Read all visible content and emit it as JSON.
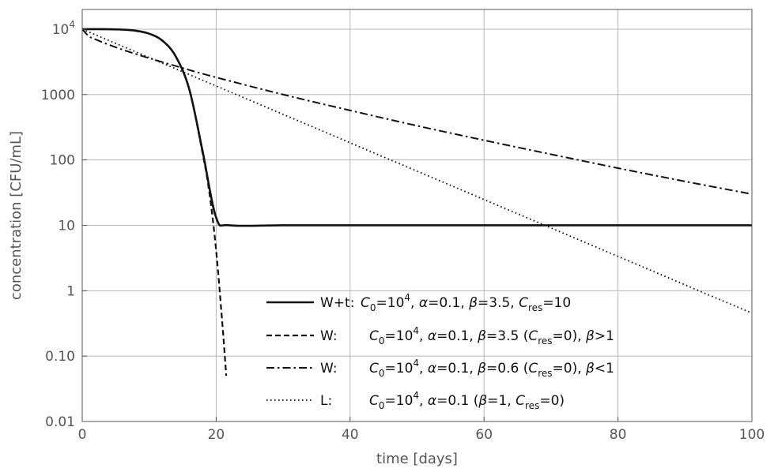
{
  "chart_data": {
    "type": "line",
    "xlabel": "time [days]",
    "ylabel": "concentration [CFU/mL]",
    "x_scale": "linear",
    "y_scale": "log",
    "xlim": [
      0,
      100
    ],
    "ylim": [
      0.01,
      20000
    ],
    "grid": true,
    "legend_placement": "bottom-center",
    "x_ticks": [
      "0",
      "20",
      "40",
      "60",
      "80",
      "100"
    ],
    "y_ticks": [
      {
        "value": 0.01,
        "label": "0.01"
      },
      {
        "value": 0.1,
        "label": "0.10"
      },
      {
        "value": 1,
        "label": "1"
      },
      {
        "value": 10,
        "label": "10"
      },
      {
        "value": 100,
        "label": "100"
      },
      {
        "value": 1000,
        "label": "1000"
      },
      {
        "value": 10000,
        "label": "10",
        "exp": "4"
      }
    ],
    "series": [
      {
        "style": "solid",
        "legend": {
          "tag": "W+t:",
          "parts": [
            {
              "t": "C",
              "i": true
            },
            {
              "t": "0",
              "sub": true
            },
            {
              "t": "=10"
            },
            {
              "t": "4",
              "sup": true
            },
            {
              "t": ", "
            },
            {
              "t": "α",
              "i": true
            },
            {
              "t": "=0.1, "
            },
            {
              "t": "β",
              "i": true
            },
            {
              "t": "=3.5, "
            },
            {
              "t": "C",
              "i": true
            },
            {
              "t": "res",
              "sub": true
            },
            {
              "t": "=10"
            }
          ]
        },
        "x": [
          0,
          2,
          4,
          6,
          8,
          10,
          12,
          14,
          16,
          18,
          20,
          22,
          30,
          40,
          50,
          60,
          70,
          80,
          90,
          100
        ],
        "y": [
          10000,
          9998,
          9970,
          9840,
          9450,
          8530,
          6650,
          3780,
          1190,
          132,
          13.1,
          10.01,
          10,
          10,
          10,
          10,
          10,
          10,
          10,
          10
        ]
      },
      {
        "style": "dashed",
        "legend": {
          "tag": "W:",
          "parts": [
            {
              "t": "C",
              "i": true
            },
            {
              "t": "0",
              "sub": true
            },
            {
              "t": "=10"
            },
            {
              "t": "4",
              "sup": true
            },
            {
              "t": ", "
            },
            {
              "t": "α",
              "i": true
            },
            {
              "t": "=0.1, "
            },
            {
              "t": "β",
              "i": true
            },
            {
              "t": "=3.5 ("
            },
            {
              "t": "C",
              "i": true
            },
            {
              "t": "res",
              "sub": true
            },
            {
              "t": "=0), "
            },
            {
              "t": "β",
              "i": true
            },
            {
              "t": ">1"
            }
          ]
        },
        "x": [
          0,
          2,
          4,
          6,
          8,
          10,
          12,
          14,
          16,
          18,
          19,
          20,
          21,
          21.5
        ],
        "y": [
          10000,
          9998,
          9960,
          9830,
          9440,
          8520,
          6640,
          3770,
          1180,
          122,
          30.8,
          4.1,
          0.25,
          0.05
        ]
      },
      {
        "style": "dashdot",
        "legend": {
          "tag": "W:",
          "parts": [
            {
              "t": "C",
              "i": true
            },
            {
              "t": "0",
              "sub": true
            },
            {
              "t": "=10"
            },
            {
              "t": "4",
              "sup": true
            },
            {
              "t": ", "
            },
            {
              "t": "α",
              "i": true
            },
            {
              "t": "=0.1, "
            },
            {
              "t": "β",
              "i": true
            },
            {
              "t": "=0.6 ("
            },
            {
              "t": "C",
              "i": true
            },
            {
              "t": "res",
              "sub": true
            },
            {
              "t": "=0), "
            },
            {
              "t": "β",
              "i": true
            },
            {
              "t": "<1"
            }
          ]
        },
        "x": [
          0,
          1,
          2,
          4,
          6,
          8,
          10,
          15,
          20,
          30,
          40,
          50,
          60,
          70,
          80,
          90,
          100
        ],
        "y": [
          10000,
          7770,
          6960,
          5760,
          4870,
          4170,
          3600,
          2540,
          1830,
          1000,
          572,
          333,
          200,
          122,
          75,
          47,
          30
        ]
      },
      {
        "style": "dotted",
        "legend": {
          "tag": "L:",
          "parts": [
            {
              "t": "C",
              "i": true
            },
            {
              "t": "0",
              "sub": true
            },
            {
              "t": "=10"
            },
            {
              "t": "4",
              "sup": true
            },
            {
              "t": ", "
            },
            {
              "t": "α",
              "i": true
            },
            {
              "t": "=0.1  ("
            },
            {
              "t": "β",
              "i": true
            },
            {
              "t": "=1,   "
            },
            {
              "t": "C",
              "i": true
            },
            {
              "t": "res",
              "sub": true
            },
            {
              "t": "=0)"
            }
          ]
        },
        "x": [
          0,
          10,
          20,
          30,
          40,
          50,
          60,
          70,
          80,
          90,
          100
        ],
        "y": [
          10000,
          3679,
          1353,
          498,
          183,
          67.4,
          24.8,
          9.12,
          3.35,
          1.23,
          0.454
        ]
      }
    ]
  }
}
